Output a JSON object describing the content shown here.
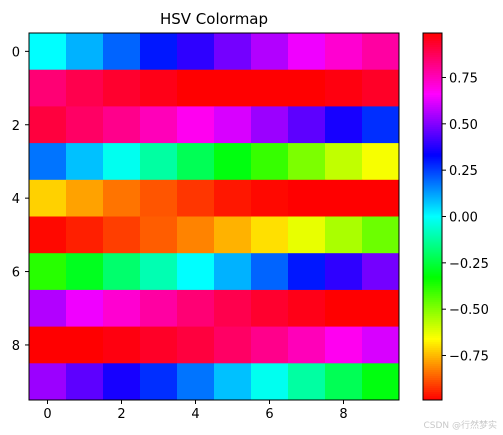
{
  "chart_data": {
    "type": "heatmap",
    "title": "HSV Colormap",
    "xlabel": "",
    "ylabel": "",
    "colormap": "hsv",
    "x_ticks": [
      0,
      2,
      4,
      6,
      8
    ],
    "y_ticks": [
      0,
      2,
      4,
      6,
      8
    ],
    "colorbar_ticks": [
      0.75,
      0.5,
      0.25,
      0.0,
      -0.25,
      -0.5,
      -0.75
    ],
    "colorbar_tick_labels": [
      "0.75",
      "0.50",
      "0.25",
      "0.00",
      "−0.25",
      "−0.50",
      "−0.75"
    ],
    "vmin": -0.99,
    "vmax": 0.99,
    "grid": false,
    "values": [
      [
        0.0,
        0.1,
        0.2,
        0.3,
        0.39,
        0.48,
        0.56,
        0.64,
        0.72,
        0.78
      ],
      [
        0.84,
        0.89,
        0.93,
        0.96,
        0.99,
        1.0,
        1.0,
        0.99,
        0.97,
        0.94
      ],
      [
        0.91,
        0.86,
        0.81,
        0.75,
        0.68,
        0.61,
        0.53,
        0.45,
        0.36,
        0.27
      ],
      [
        0.18,
        0.08,
        -0.02,
        -0.12,
        -0.22,
        -0.31,
        -0.4,
        -0.49,
        -0.58,
        -0.65
      ],
      [
        -0.72,
        -0.78,
        -0.84,
        -0.88,
        -0.92,
        -0.96,
        -0.98,
        -0.99,
        -1.0,
        -0.99
      ],
      [
        -0.98,
        -0.95,
        -0.91,
        -0.87,
        -0.82,
        -0.76,
        -0.7,
        -0.63,
        -0.55,
        -0.47
      ],
      [
        -0.38,
        -0.29,
        -0.19,
        -0.1,
        0.0,
        0.1,
        0.2,
        0.3,
        0.39,
        0.48
      ],
      [
        0.56,
        0.64,
        0.72,
        0.78,
        0.84,
        0.89,
        0.93,
        0.96,
        0.99,
        1.0
      ],
      [
        1.0,
        0.99,
        0.97,
        0.94,
        0.91,
        0.86,
        0.81,
        0.75,
        0.68,
        0.61
      ],
      [
        0.53,
        0.45,
        0.36,
        0.27,
        0.18,
        0.08,
        -0.02,
        -0.12,
        -0.22,
        -0.31
      ]
    ]
  },
  "watermark": "CSDN @行然梦实"
}
